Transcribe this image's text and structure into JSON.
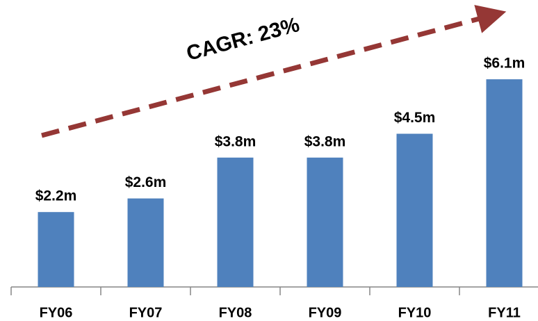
{
  "chart_data": {
    "type": "bar",
    "annotation": "CAGR: 23%",
    "categories": [
      "FY06",
      "FY07",
      "FY08",
      "FY09",
      "FY10",
      "FY11"
    ],
    "values": [
      2.2,
      2.6,
      3.8,
      3.8,
      4.5,
      6.1
    ],
    "value_labels": [
      "$2.2m",
      "$2.6m",
      "$3.8m",
      "$3.8m",
      "$4.5m",
      "$6.1m"
    ],
    "color": "#4f81bd",
    "ylim": [
      0,
      7
    ]
  }
}
